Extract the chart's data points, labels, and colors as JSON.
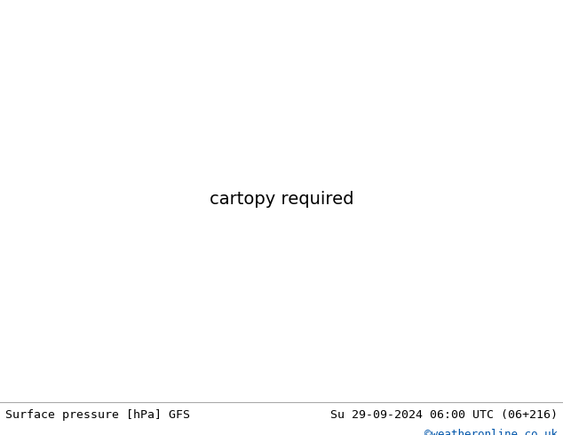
{
  "title_left": "Surface pressure [hPa] GFS",
  "title_right": "Su 29-09-2024 06:00 UTC (06+216)",
  "credit": "©weatheronline.co.uk",
  "credit_color": "#0055aa",
  "land_color": "#c8e8a0",
  "ocean_color": "#dcdcdc",
  "border_color": "#aaaaaa",
  "coast_color": "#333333",
  "isobar_red": "#dd0000",
  "isobar_blue": "#0044cc",
  "isobar_black": "#000000",
  "label_fontsize": 7.5,
  "title_fontsize": 9.5,
  "figsize": [
    6.34,
    4.9
  ],
  "dpi": 100,
  "extent": [
    -20,
    75,
    -45,
    38
  ],
  "bottom_bar_height": 0.082
}
